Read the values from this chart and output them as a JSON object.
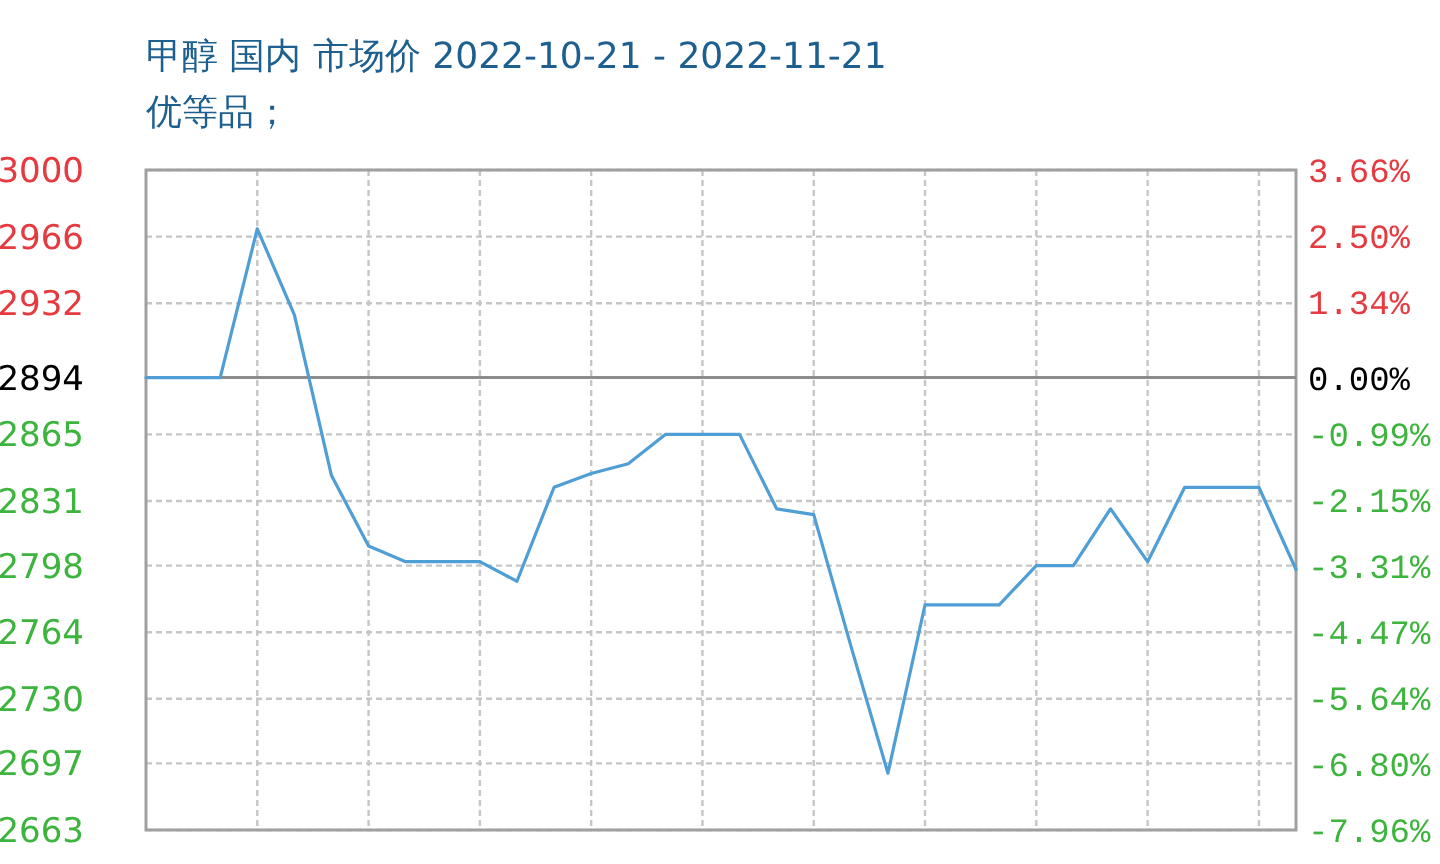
{
  "chart_data": {
    "type": "line",
    "title": "甲醇 国内 市场价 2022-10-21 - 2022-11-21",
    "subtitle": "优等品；",
    "categories": [
      null,
      null,
      null,
      null,
      null,
      null,
      null,
      null,
      null,
      null,
      null,
      null,
      null,
      null,
      null,
      null,
      null,
      null,
      null,
      null,
      null,
      null,
      null,
      null,
      null,
      null,
      null,
      null,
      null,
      null,
      null,
      null
    ],
    "series": [
      {
        "color": "#4f9ed6",
        "values": [
          2894,
          2894,
          2894,
          2970,
          2926,
          2844,
          2808,
          2800,
          2800,
          2800,
          2790,
          2838,
          2845,
          2850,
          2865,
          2865,
          2865,
          2827,
          2824,
          2757,
          2692,
          2778,
          2778,
          2778,
          2798,
          2798,
          2827,
          2800,
          2838,
          2838,
          2838,
          2796
        ]
      }
    ],
    "ylim": [
      2663,
      3000
    ],
    "yticks": [
      3000,
      2966,
      2932,
      2894,
      2865,
      2831,
      2798,
      2764,
      2730,
      2697,
      2663
    ],
    "y2lim": [
      -7.96,
      3.66
    ],
    "y2ticks": [
      {
        "value": 3.66,
        "label": "3.66%"
      },
      {
        "value": 2.5,
        "label": "2.50%"
      },
      {
        "value": 1.34,
        "label": "1.34%"
      },
      {
        "value": 0,
        "label": "0.00%"
      },
      {
        "value": -0.99,
        "label": "-0.99%"
      },
      {
        "value": -2.15,
        "label": "-2.15%"
      },
      {
        "value": -3.31,
        "label": "-3.31%"
      },
      {
        "value": -4.47,
        "label": "-4.47%"
      },
      {
        "value": -5.64,
        "label": "-5.64%"
      },
      {
        "value": -6.8,
        "label": "-6.80%"
      },
      {
        "value": -7.96,
        "label": "-7.96%"
      }
    ],
    "ref_lines": [
      {
        "axis": "y",
        "value": 2894,
        "color": "#8c8c8c"
      }
    ],
    "grid": true
  }
}
